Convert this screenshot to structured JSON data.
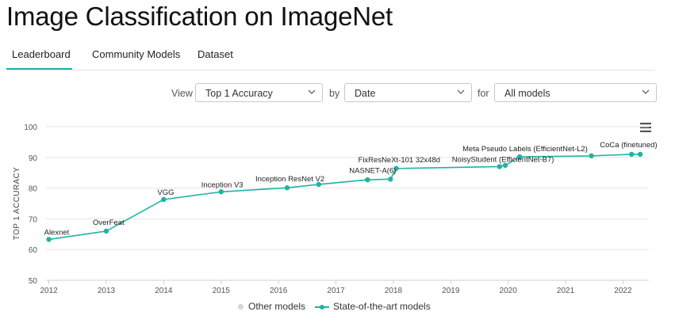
{
  "page": {
    "title": "Image Classification on ImageNet"
  },
  "tabs": [
    {
      "label": "Leaderboard",
      "active": true
    },
    {
      "label": "Community Models",
      "active": false
    },
    {
      "label": "Dataset",
      "active": false
    }
  ],
  "controls": {
    "view_label": "View",
    "metric_value": "Top 1 Accuracy",
    "by_label": "by",
    "xaxis_value": "Date",
    "for_label": "for",
    "filter_value": "All models"
  },
  "colors": {
    "accent": "#21b2a6",
    "other": "#d6d6d6",
    "grid": "#e6e6e6"
  },
  "legend": {
    "other_label": "Other models",
    "sota_label": "State-of-the-art models"
  },
  "chart_data": {
    "type": "line",
    "title": "",
    "xlabel": "",
    "ylabel": "TOP 1 ACCURACY",
    "ylim": [
      50,
      100
    ],
    "yticks": [
      50,
      60,
      70,
      80,
      90,
      100
    ],
    "xlim": [
      2011.95,
      2022.45
    ],
    "xticks": [
      "2012",
      "2013",
      "2014",
      "2015",
      "2016",
      "2017",
      "2018",
      "2019",
      "2020",
      "2021",
      "2022"
    ],
    "series": [
      {
        "name": "State-of-the-art models",
        "points": [
          {
            "x": 2012.0,
            "y": 63.3,
            "label": "Alexnet"
          },
          {
            "x": 2013.0,
            "y": 66.0,
            "label": "OverFeat"
          },
          {
            "x": 2014.0,
            "y": 76.3,
            "label": "VGG"
          },
          {
            "x": 2015.0,
            "y": 78.8,
            "label": "Inception V3"
          },
          {
            "x": 2016.15,
            "y": 80.1,
            "label": "Inception ResNet V2"
          },
          {
            "x": 2016.7,
            "y": 81.2,
            "label": ""
          },
          {
            "x": 2017.55,
            "y": 82.7,
            "label": ""
          },
          {
            "x": 2017.95,
            "y": 82.9,
            "label": "NASNET-A(6)"
          },
          {
            "x": 2018.05,
            "y": 86.4,
            "label": "FixResNeXt-101 32x48d"
          },
          {
            "x": 2019.85,
            "y": 87.0,
            "label": "NoisyStudent (EfficientNet-B7)"
          },
          {
            "x": 2019.95,
            "y": 87.4,
            "label": ""
          },
          {
            "x": 2020.2,
            "y": 90.2,
            "label": "Meta Pseudo Labels (EfficientNet-L2)"
          },
          {
            "x": 2021.45,
            "y": 90.5,
            "label": ""
          },
          {
            "x": 2022.15,
            "y": 91.0,
            "label": "CoCa (finetuned)"
          },
          {
            "x": 2022.3,
            "y": 91.0,
            "label": ""
          }
        ]
      }
    ]
  }
}
